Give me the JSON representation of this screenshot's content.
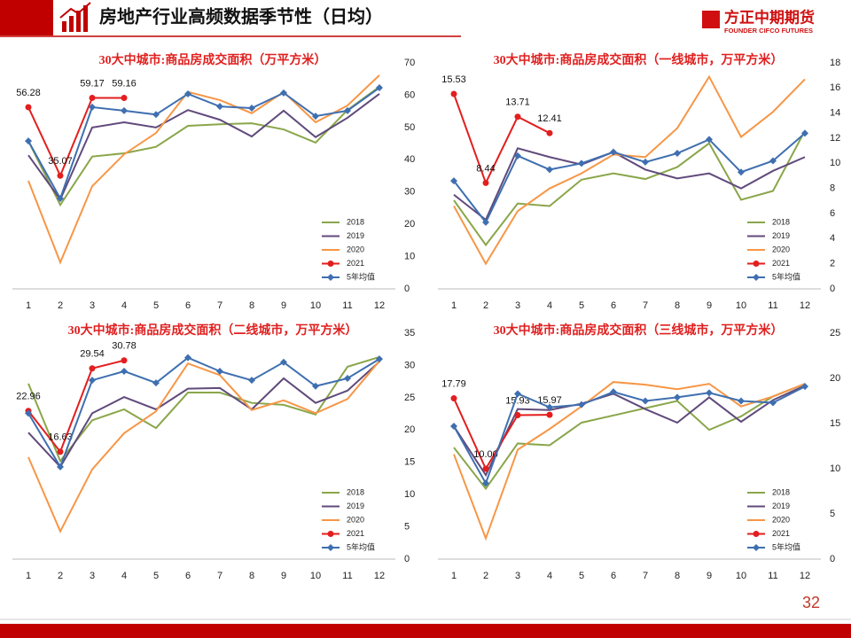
{
  "header": {
    "title": "房地产行业高频数据季节性（日均）",
    "logo_cn": "方正中期期货",
    "logo_en": "FOUNDER CIFCO FUTURES"
  },
  "page_number": "32",
  "chart_data": [
    {
      "type": "line",
      "title": "30大中城市:商品房成交面积（万平方米）",
      "categories": [
        "1",
        "2",
        "3",
        "4",
        "5",
        "6",
        "7",
        "8",
        "9",
        "10",
        "11",
        "12"
      ],
      "ylim": [
        0,
        70
      ],
      "yticks": [
        0,
        10,
        20,
        30,
        40,
        50,
        60,
        70
      ],
      "y_axis_side": "right",
      "grid": false,
      "legend": "lower right",
      "series": [
        {
          "name": "2018",
          "color": "#8aa64a",
          "values": [
            45.8,
            26,
            41,
            42,
            44,
            50.5,
            51,
            51.3,
            49.4,
            45.3,
            55.4,
            62.6
          ]
        },
        {
          "name": "2019",
          "color": "#604a7b",
          "values": [
            41.4,
            27.7,
            50,
            51.6,
            50,
            55.4,
            52.4,
            47.2,
            55.2,
            47,
            53,
            60.4
          ]
        },
        {
          "name": "2020",
          "color": "#f79646",
          "values": [
            33.5,
            8.2,
            31.8,
            41.7,
            48.3,
            61,
            58.5,
            54.4,
            61,
            51.6,
            56.8,
            66.2
          ]
        },
        {
          "name": "2021",
          "color": "#e31e1e",
          "marker": "circle",
          "data_labels": true,
          "values": [
            56.28,
            35.07,
            59.17,
            59.16,
            null,
            null,
            null,
            null,
            null,
            null,
            null,
            null
          ]
        },
        {
          "name": "5年均值",
          "color": "#3f6fb0",
          "marker": "diamond",
          "values": [
            45.8,
            28,
            56.3,
            55.2,
            54,
            60.4,
            56.5,
            56,
            60.7,
            53.5,
            55.2,
            62.3
          ]
        }
      ]
    },
    {
      "type": "line",
      "title": "30大中城市:商品房成交面积（一线城市，万平方米）",
      "categories": [
        "1",
        "2",
        "3",
        "4",
        "5",
        "6",
        "7",
        "8",
        "9",
        "10",
        "11",
        "12"
      ],
      "ylim": [
        0,
        18
      ],
      "yticks": [
        0,
        2,
        4,
        6,
        8,
        10,
        12,
        14,
        16,
        18
      ],
      "y_axis_side": "right",
      "grid": false,
      "legend": "lower right",
      "series": [
        {
          "name": "2018",
          "color": "#8aa64a",
          "values": [
            7.06,
            3.5,
            6.8,
            6.6,
            8.7,
            9.2,
            8.75,
            9.7,
            11.6,
            7.1,
            7.8,
            12.6
          ]
        },
        {
          "name": "2019",
          "color": "#604a7b",
          "values": [
            7.5,
            5.5,
            11.2,
            10.5,
            9.9,
            10.9,
            9.5,
            8.8,
            9.2,
            8,
            9.4,
            10.5
          ]
        },
        {
          "name": "2020",
          "color": "#f79646",
          "values": [
            6.6,
            2,
            6.2,
            8,
            9.2,
            10.7,
            10.5,
            12.8,
            16.9,
            12.1,
            14.1,
            16.7
          ]
        },
        {
          "name": "2021",
          "color": "#e31e1e",
          "marker": "circle",
          "data_labels": true,
          "values": [
            15.53,
            8.44,
            13.71,
            12.41,
            null,
            null,
            null,
            null,
            null,
            null,
            null,
            null
          ]
        },
        {
          "name": "5年均值",
          "color": "#3f6fb0",
          "marker": "diamond",
          "values": [
            8.6,
            5.3,
            10.6,
            9.5,
            10,
            10.9,
            10.1,
            10.8,
            11.9,
            9.3,
            10.2,
            12.4
          ]
        }
      ]
    },
    {
      "type": "line",
      "title": "30大中城市:商品房成交面积（二线城市，万平方米）",
      "categories": [
        "1",
        "2",
        "3",
        "4",
        "5",
        "6",
        "7",
        "8",
        "9",
        "10",
        "11",
        "12"
      ],
      "ylim": [
        0,
        35
      ],
      "yticks": [
        0,
        5,
        10,
        15,
        20,
        25,
        30,
        35
      ],
      "y_axis_side": "right",
      "grid": false,
      "legend": "lower right",
      "series": [
        {
          "name": "2018",
          "color": "#8aa64a",
          "values": [
            27.2,
            15.2,
            21.5,
            23.2,
            20.3,
            25.8,
            25.8,
            24.2,
            23.9,
            22.4,
            29.8,
            31.3
          ]
        },
        {
          "name": "2019",
          "color": "#604a7b",
          "values": [
            19.6,
            14.3,
            22.6,
            25.1,
            23.2,
            26.4,
            26.5,
            23.2,
            28,
            24.2,
            26.1,
            30.6
          ]
        },
        {
          "name": "2020",
          "color": "#f79646",
          "values": [
            15.8,
            4.3,
            13.9,
            19.5,
            22.9,
            30.3,
            28.5,
            23.1,
            24.6,
            22.6,
            24.8,
            30.7
          ]
        },
        {
          "name": "2021",
          "color": "#e31e1e",
          "marker": "circle",
          "data_labels": true,
          "values": [
            22.96,
            16.63,
            29.54,
            30.78,
            null,
            null,
            null,
            null,
            null,
            null,
            null,
            null
          ]
        },
        {
          "name": "5年均值",
          "color": "#3f6fb0",
          "marker": "diamond",
          "values": [
            22.6,
            14.3,
            27.7,
            29.1,
            27.3,
            31.2,
            29.1,
            27.7,
            30.5,
            26.8,
            28,
            31
          ]
        }
      ]
    },
    {
      "type": "line",
      "title": "30大中城市:商品房成交面积（三线城市，万平方米）",
      "categories": [
        "1",
        "2",
        "3",
        "4",
        "5",
        "6",
        "7",
        "8",
        "9",
        "10",
        "11",
        "12"
      ],
      "ylim": [
        0,
        25
      ],
      "yticks": [
        0,
        5,
        10,
        15,
        20,
        25
      ],
      "y_axis_side": "right",
      "grid": false,
      "legend": "lower right",
      "series": [
        {
          "name": "2018",
          "color": "#8aa64a",
          "values": [
            12.35,
            7.8,
            12.8,
            12.6,
            15.1,
            15.9,
            16.7,
            17.5,
            14.3,
            15.8,
            18,
            19.4
          ]
        },
        {
          "name": "2019",
          "color": "#604a7b",
          "values": [
            14.7,
            9.3,
            16.6,
            16.5,
            17.2,
            18.3,
            16.6,
            15.1,
            17.9,
            15.2,
            17.6,
            19.2
          ]
        },
        {
          "name": "2020",
          "color": "#f79646",
          "values": [
            11.6,
            2.3,
            12.1,
            14.4,
            16.9,
            19.6,
            19.3,
            18.8,
            19.4,
            16.9,
            18,
            19.4
          ]
        },
        {
          "name": "2021",
          "color": "#e31e1e",
          "marker": "circle",
          "data_labels": true,
          "values": [
            17.79,
            10,
            15.93,
            15.97,
            null,
            null,
            null,
            null,
            null,
            null,
            null,
            null
          ],
          "value_labels": [
            "17.79",
            "10.00",
            "15.93",
            "15.97",
            null,
            null,
            null,
            null,
            null,
            null,
            null,
            null
          ]
        },
        {
          "name": "5年均值",
          "color": "#3f6fb0",
          "marker": "diamond",
          "values": [
            14.7,
            8.4,
            18.3,
            16.8,
            17.1,
            18.5,
            17.5,
            17.9,
            18.4,
            17.5,
            17.3,
            19.1
          ]
        }
      ]
    }
  ]
}
